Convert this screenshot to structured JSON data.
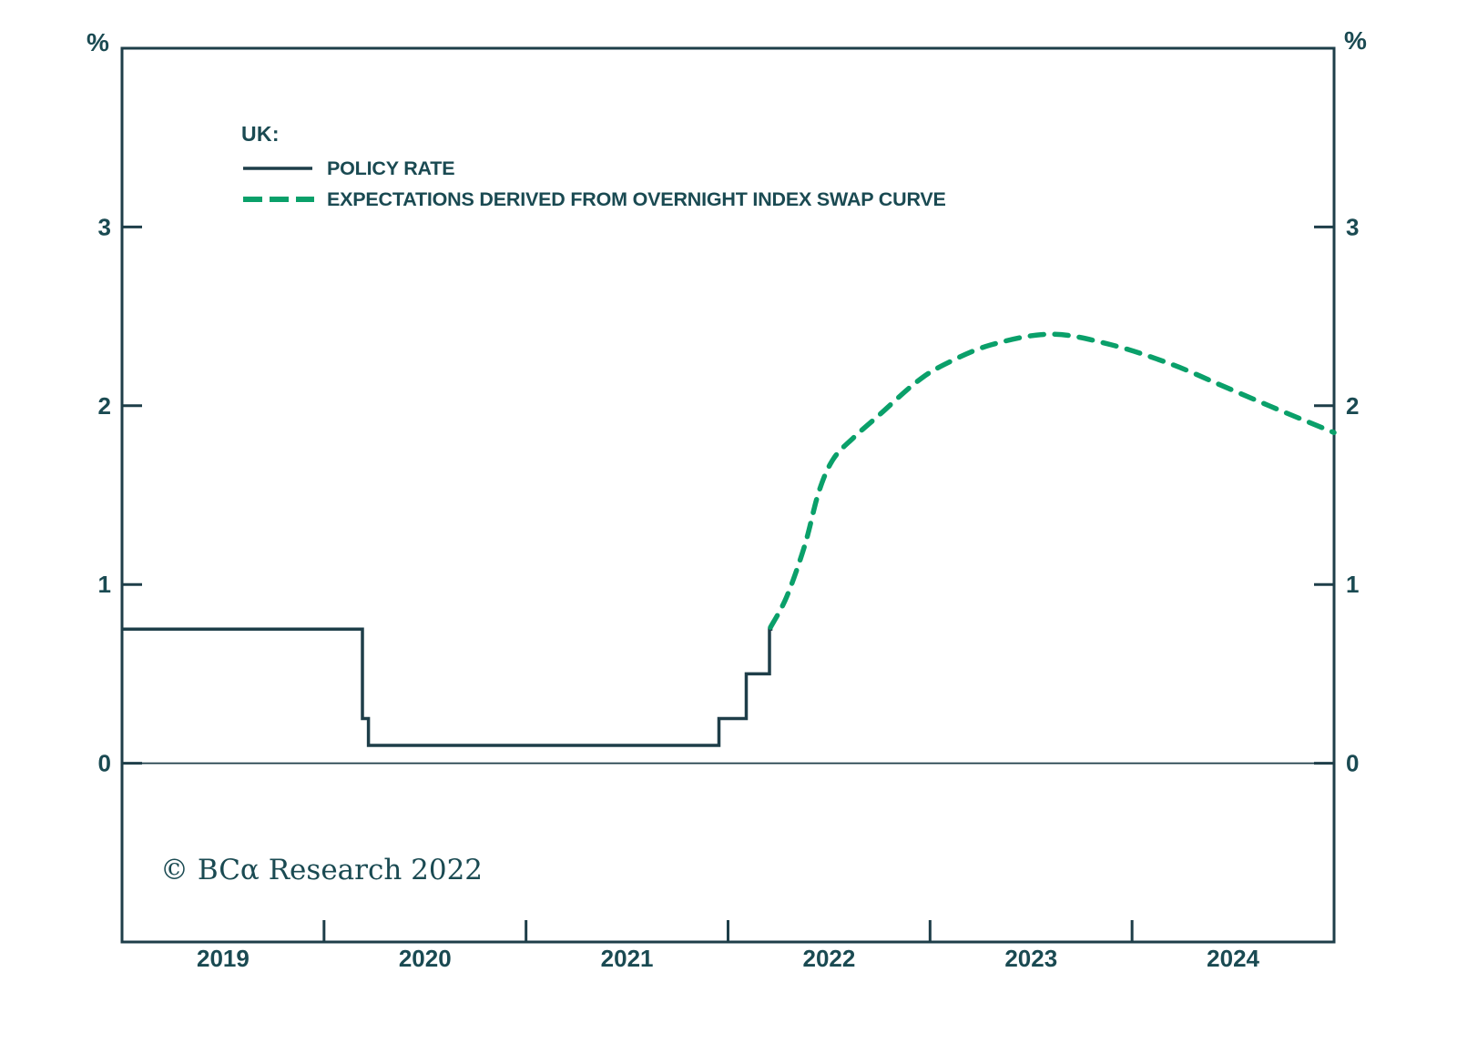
{
  "page": {
    "unit_label_left": "%",
    "unit_label_right": "%",
    "copyright": "© BCα Research 2022"
  },
  "colors": {
    "ink": "#1e3e49",
    "text": "#1a4a52",
    "green": "#0aa06a",
    "background": "#ffffff"
  },
  "legend": {
    "group_label": "UK:",
    "items": [
      {
        "label": "POLICY RATE",
        "style": "solid",
        "color": "#1e3e49"
      },
      {
        "label": "EXPECTATIONS DERIVED FROM OVERNIGHT INDEX SWAP CURVE",
        "style": "dashed",
        "color": "#0aa06a"
      }
    ]
  },
  "chart_data": {
    "type": "line",
    "title": "",
    "xlabel": "",
    "ylabel": "%",
    "grid": false,
    "zero_line": true,
    "legend_position": "top-left-inside",
    "x_range": [
      2019.0,
      2025.0
    ],
    "y_range": [
      -1.0,
      4.0
    ],
    "y_ticks": [
      0,
      1,
      2,
      3
    ],
    "x_ticks": [
      2020,
      2021,
      2022,
      2023,
      2024
    ],
    "x_year_labels": [
      "2019",
      "2020",
      "2021",
      "2022",
      "2023",
      "2024"
    ],
    "series": [
      {
        "name": "POLICY RATE",
        "render": "step-linear",
        "dashed": false,
        "color": "#1e3e49",
        "points": [
          [
            2019.0,
            0.75
          ],
          [
            2020.19,
            0.75
          ],
          [
            2020.19,
            0.25
          ],
          [
            2020.22,
            0.25
          ],
          [
            2020.22,
            0.1
          ],
          [
            2021.955,
            0.1
          ],
          [
            2021.955,
            0.25
          ],
          [
            2022.09,
            0.25
          ],
          [
            2022.09,
            0.5
          ],
          [
            2022.205,
            0.5
          ],
          [
            2022.205,
            0.75
          ],
          [
            2022.22,
            0.75
          ]
        ]
      },
      {
        "name": "EXPECTATIONS DERIVED FROM OVERNIGHT INDEX SWAP CURVE",
        "render": "smooth",
        "dashed": true,
        "color": "#0aa06a",
        "points": [
          [
            2022.21,
            0.76
          ],
          [
            2022.29,
            0.93
          ],
          [
            2022.38,
            1.22
          ],
          [
            2022.45,
            1.52
          ],
          [
            2022.52,
            1.7
          ],
          [
            2022.62,
            1.82
          ],
          [
            2022.75,
            1.95
          ],
          [
            2022.93,
            2.13
          ],
          [
            2023.07,
            2.23
          ],
          [
            2023.3,
            2.34
          ],
          [
            2023.6,
            2.4
          ],
          [
            2023.9,
            2.34
          ],
          [
            2024.2,
            2.23
          ],
          [
            2024.45,
            2.11
          ],
          [
            2024.72,
            1.98
          ],
          [
            2025.0,
            1.85
          ]
        ]
      }
    ]
  }
}
